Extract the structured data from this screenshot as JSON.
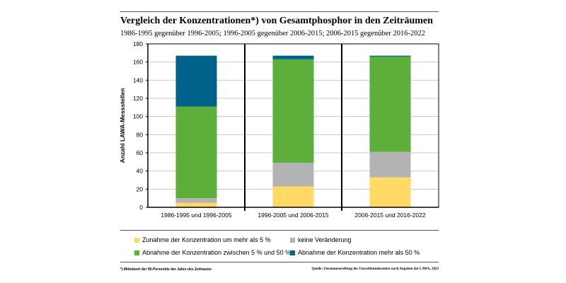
{
  "chart_data": {
    "type": "bar",
    "stacked": true,
    "title": "Vergleich der Konzentrationen*) von Gesamtphosphor in den Zeiträumen",
    "subtitle": "1986-1995 gegenüber 1996-2005; 1996-2005 gegenüber 2006-2015; 2006-2015 gegenüber 2016-2022",
    "ylabel": "Anzahl LAWA-Messstellen",
    "xlabel": "",
    "ylim": [
      0,
      180
    ],
    "yticks": [
      0,
      20,
      40,
      60,
      80,
      100,
      120,
      140,
      160,
      180
    ],
    "grid": true,
    "legend_position": "bottom",
    "categories": [
      "1986-1995 und 1996-2005",
      "1996-2005 und 2006-2015",
      "2006-2015 und 2016-2022"
    ],
    "series": [
      {
        "name": "Zunahme der Konzentration um mehr als 5 %",
        "color": "#FFD966",
        "values": [
          5,
          23,
          33
        ]
      },
      {
        "name": "keine Veränderung",
        "color": "#B3B3B3",
        "values": [
          5,
          26,
          28
        ]
      },
      {
        "name": "Abnahme der Konzentration zwischen 5 % und 50 %",
        "color": "#5DAE3A",
        "values": [
          101,
          114,
          105
        ]
      },
      {
        "name": "Abnahme der Konzentration mehr als 50 %",
        "color": "#00628B",
        "values": [
          56,
          4,
          1
        ]
      }
    ]
  },
  "footnote": "*) Mittelwert der 90-Perzentile der Jahre des Zeitraums",
  "source": "Quelle: Zusammenstellung des Umweltbundesamtes nach Angaben der LAWA, 2023"
}
